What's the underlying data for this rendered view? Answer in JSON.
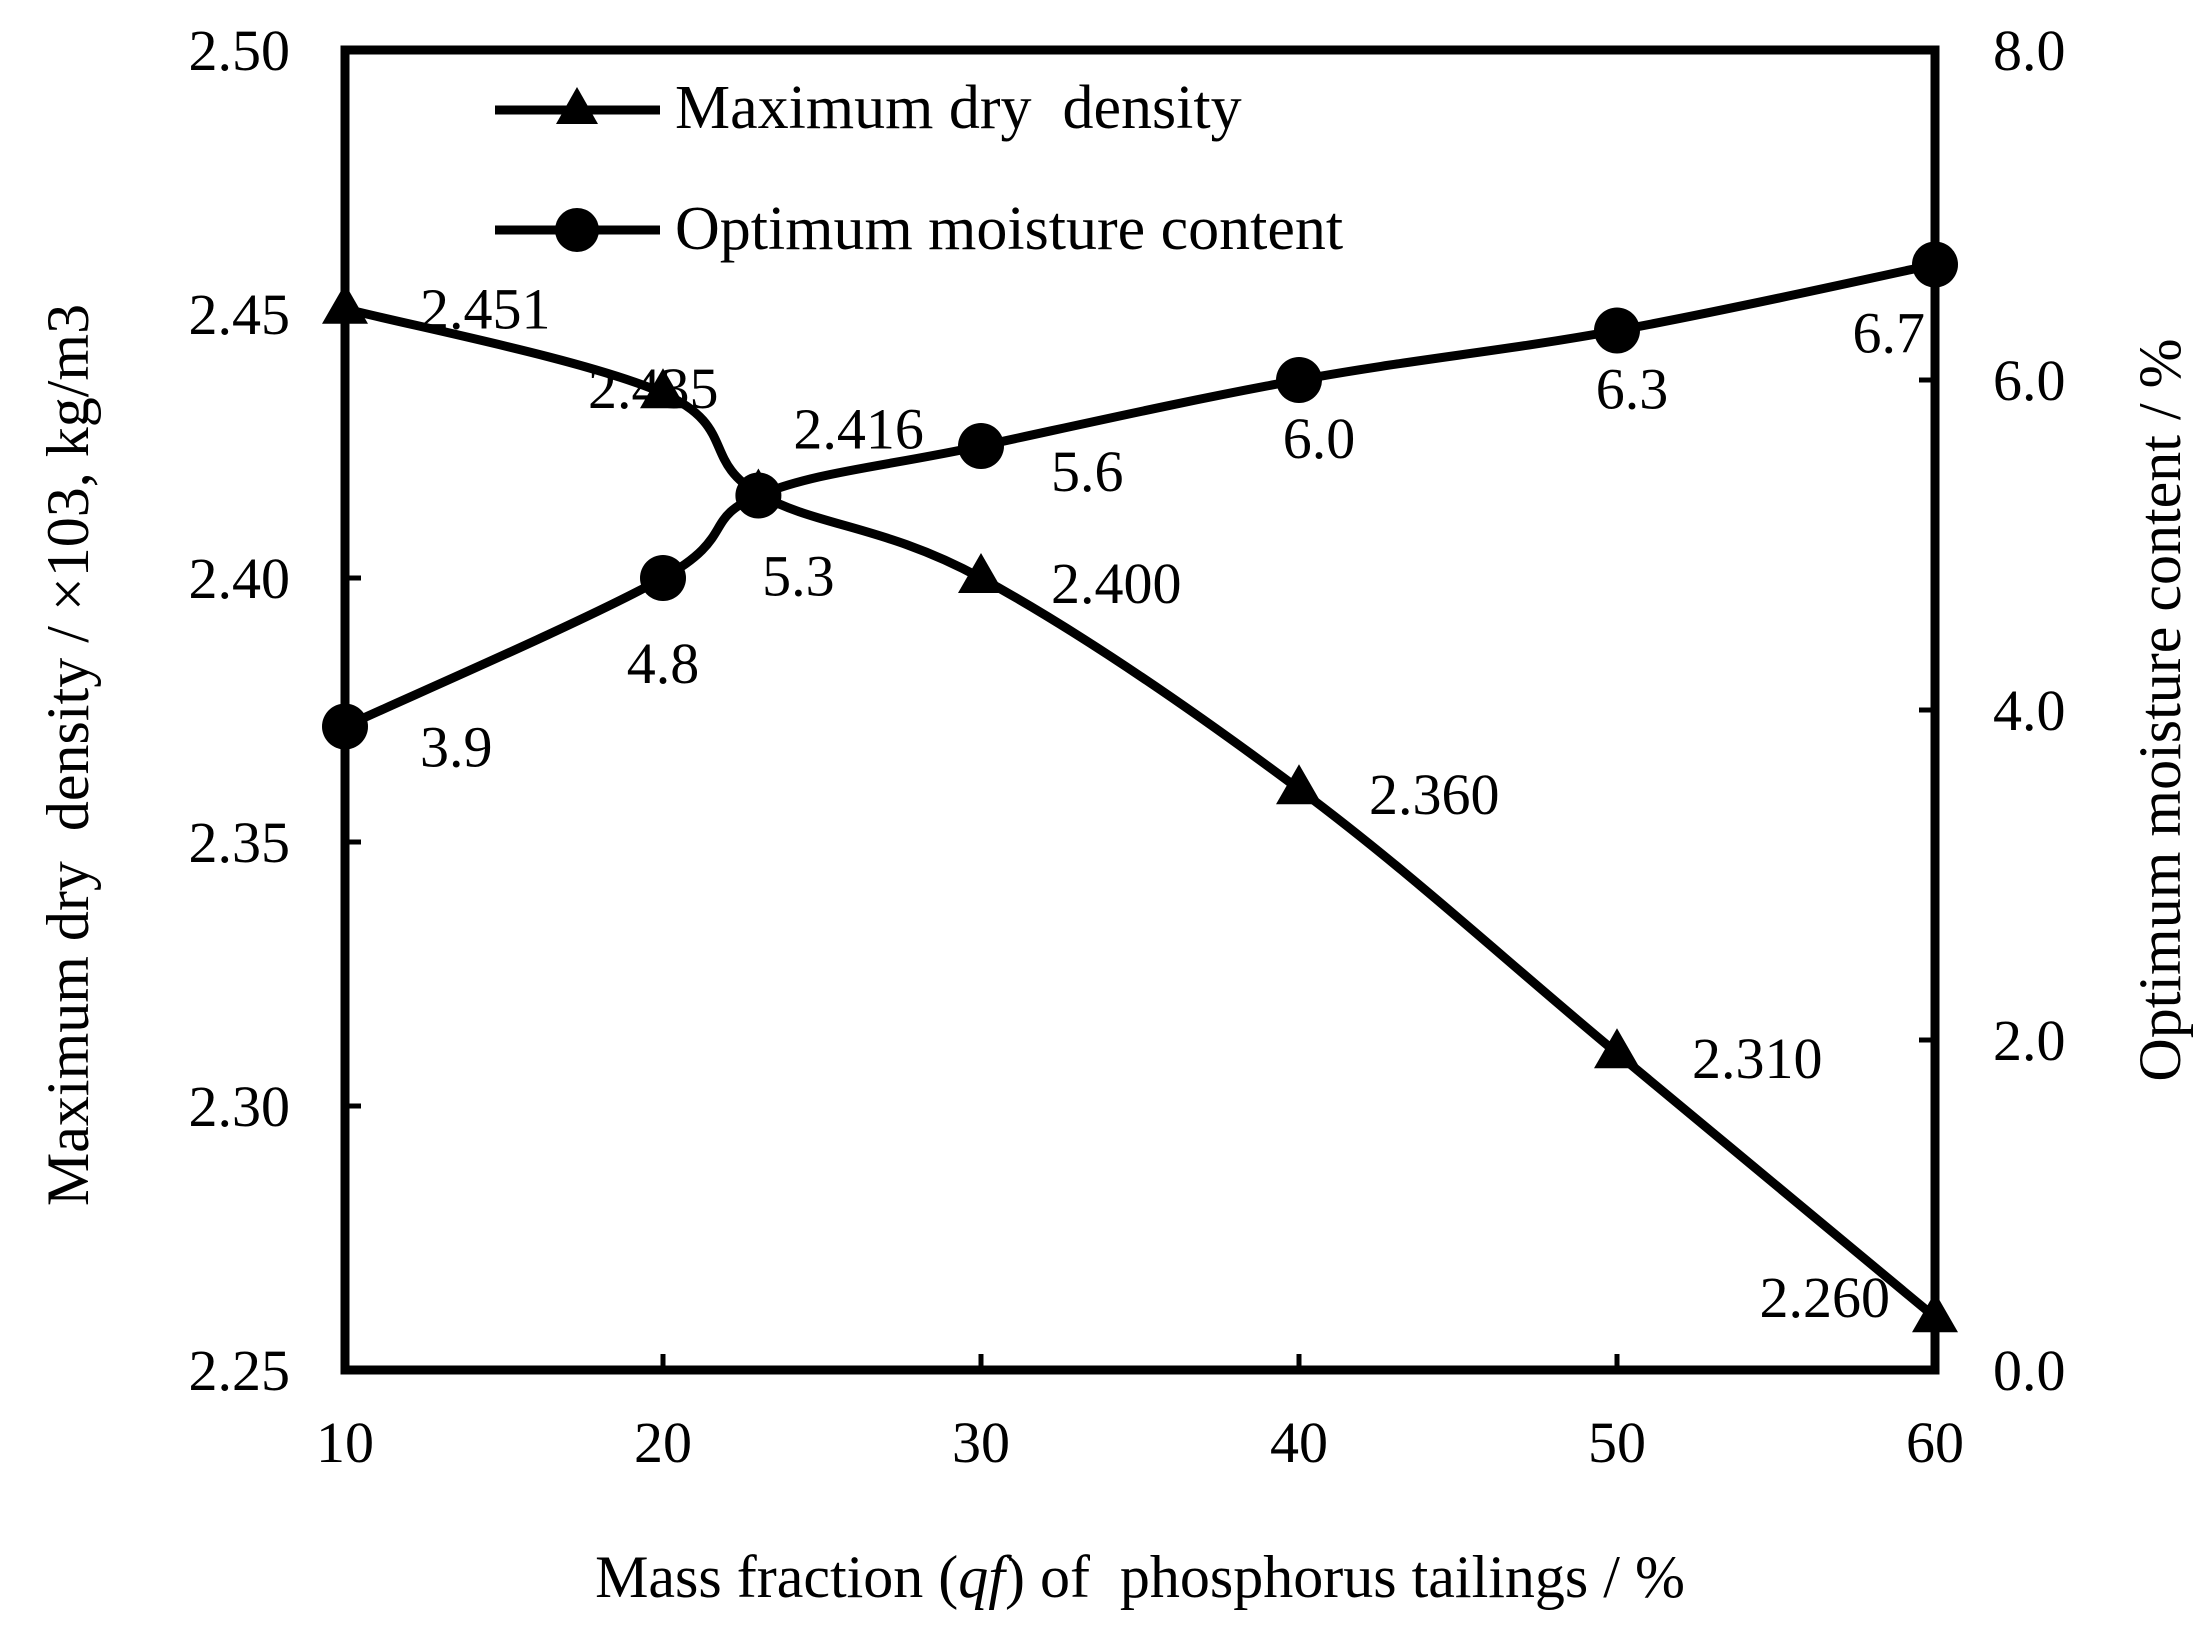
{
  "chart_data": {
    "type": "line",
    "x": [
      10,
      20,
      23,
      30,
      40,
      50,
      60
    ],
    "x_ticks": [
      "10",
      "20",
      "30",
      "40",
      "50",
      "60"
    ],
    "x_tick_values": [
      10,
      20,
      30,
      40,
      50,
      60
    ],
    "xlim": [
      10,
      60
    ],
    "xlabel": "Mass fraction (qf) of  phosphorus tailings / %",
    "xlabel_parts": {
      "before": "Mass fraction (",
      "italic": "qf",
      "after": ") of  phosphorus tailings / %"
    },
    "y_left": {
      "label": "Maximum dry  density / ×103, kg/m3",
      "lim": [
        2.25,
        2.5
      ],
      "ticks": [
        "2.25",
        "2.30",
        "2.35",
        "2.40",
        "2.45",
        "2.50"
      ],
      "tick_values": [
        2.25,
        2.3,
        2.35,
        2.4,
        2.45,
        2.5
      ]
    },
    "y_right": {
      "label": "Optimum moisture content / %",
      "lim": [
        0.0,
        8.0
      ],
      "ticks": [
        "0.0",
        "2.0",
        "4.0",
        "6.0",
        "8.0"
      ],
      "tick_values": [
        0.0,
        2.0,
        4.0,
        6.0,
        8.0
      ]
    },
    "series": [
      {
        "name": "Maximum dry  density",
        "axis": "left",
        "marker": "triangle",
        "x": [
          10,
          20,
          23,
          30,
          40,
          50,
          60
        ],
        "values": [
          2.451,
          2.435,
          2.416,
          2.4,
          2.36,
          2.31,
          2.26
        ],
        "point_labels": [
          "2.451",
          "2.435",
          "2.416",
          "2.400",
          "2.360",
          "2.310",
          "2.260"
        ]
      },
      {
        "name": "Optimum moisture content",
        "axis": "right",
        "marker": "circle",
        "x": [
          10,
          20,
          23,
          30,
          40,
          50,
          60
        ],
        "values": [
          3.9,
          4.8,
          5.3,
          5.6,
          6.0,
          6.3,
          6.7
        ],
        "point_labels": [
          "3.9",
          "4.8",
          "5.3",
          "5.6",
          "6.0",
          "6.3",
          "6.7"
        ]
      }
    ],
    "legend_position": "top-left",
    "grid": false
  }
}
